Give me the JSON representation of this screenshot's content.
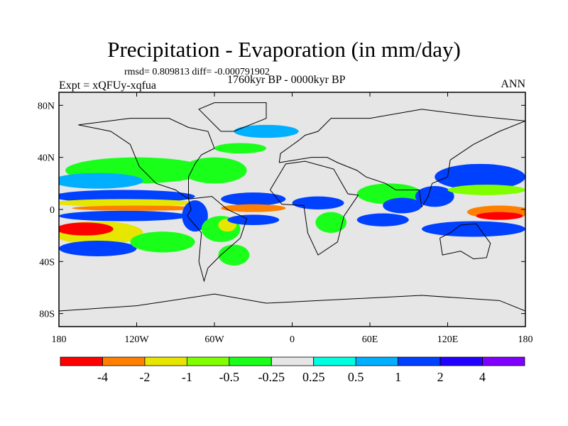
{
  "title": "Precipitation - Evaporation (in mm/day)",
  "stats": "rmsd= 0.809813 diff= -0.000791902",
  "period": "1760kyr BP - 0000kyr BP",
  "experiment": "Expt = xQFUy-xqfua",
  "season": "ANN",
  "chart_data": {
    "type": "heatmap",
    "projection": "cylindrical equidistant",
    "xlim": [
      -180,
      180
    ],
    "ylim": [
      -90,
      90
    ],
    "x_ticks": [
      {
        "v": -180,
        "label": "180"
      },
      {
        "v": -120,
        "label": "120W"
      },
      {
        "v": -60,
        "label": "60W"
      },
      {
        "v": 0,
        "label": "0"
      },
      {
        "v": 60,
        "label": "60E"
      },
      {
        "v": 120,
        "label": "120E"
      },
      {
        "v": 180,
        "label": "180"
      }
    ],
    "y_ticks": [
      {
        "v": 80,
        "label": "80N"
      },
      {
        "v": 40,
        "label": "40N"
      },
      {
        "v": 0,
        "label": "0"
      },
      {
        "v": -40,
        "label": "40S"
      },
      {
        "v": -80,
        "label": "80S"
      }
    ],
    "colorbar": {
      "levels": [
        "-4",
        "-2",
        "-1",
        "-0.5",
        "-0.25",
        "0.25",
        "0.5",
        "1",
        "2",
        "4"
      ],
      "level_values": [
        -4,
        -2,
        -1,
        -0.5,
        -0.25,
        0.25,
        0.5,
        1,
        2,
        4
      ],
      "colors": [
        "#ff0000",
        "#ff8000",
        "#e6e600",
        "#80ff00",
        "#1aff1a",
        "#e6e6e6",
        "#00ffe0",
        "#00b0ff",
        "#0040ff",
        "#2000ff",
        "#8000ff"
      ]
    },
    "regions": [
      {
        "lon": -120,
        "lat": 30,
        "rlon": 55,
        "rlat": 10,
        "value": -0.4
      },
      {
        "lon": -150,
        "lat": 22,
        "rlon": 35,
        "rlat": 6,
        "value": 0.6
      },
      {
        "lon": -60,
        "lat": 30,
        "rlon": 25,
        "rlat": 10,
        "value": -0.4
      },
      {
        "lon": -130,
        "lat": 10,
        "rlon": 55,
        "rlat": 5,
        "value": 1.5
      },
      {
        "lon": -130,
        "lat": 5,
        "rlon": 55,
        "rlat": 3,
        "value": -1.5
      },
      {
        "lon": -120,
        "lat": 1,
        "rlon": 50,
        "rlat": 2,
        "value": -2.5
      },
      {
        "lon": -130,
        "lat": -5,
        "rlon": 50,
        "rlat": 4,
        "value": 1.2
      },
      {
        "lon": -150,
        "lat": -18,
        "rlon": 35,
        "rlat": 9,
        "value": -1.5
      },
      {
        "lon": -160,
        "lat": -15,
        "rlon": 22,
        "rlat": 5,
        "value": -5
      },
      {
        "lon": -150,
        "lat": -30,
        "rlon": 30,
        "rlat": 6,
        "value": 1.5
      },
      {
        "lon": -100,
        "lat": -25,
        "rlon": 25,
        "rlat": 8,
        "value": -0.4
      },
      {
        "lon": -75,
        "lat": -5,
        "rlon": 10,
        "rlat": 12,
        "value": 1.5
      },
      {
        "lon": -55,
        "lat": -15,
        "rlon": 15,
        "rlat": 10,
        "value": -0.4
      },
      {
        "lon": -50,
        "lat": -12,
        "rlon": 7,
        "rlat": 5,
        "value": -1.5
      },
      {
        "lon": -30,
        "lat": 8,
        "rlon": 25,
        "rlat": 5,
        "value": 1.2
      },
      {
        "lon": -30,
        "lat": 1,
        "rlon": 25,
        "rlat": 3,
        "value": -2.5
      },
      {
        "lon": -30,
        "lat": -8,
        "rlon": 20,
        "rlat": 4,
        "value": 1.2
      },
      {
        "lon": -45,
        "lat": -35,
        "rlon": 12,
        "rlat": 8,
        "value": -0.4
      },
      {
        "lon": 20,
        "lat": 5,
        "rlon": 20,
        "rlat": 5,
        "value": 1.2
      },
      {
        "lon": 30,
        "lat": -10,
        "rlon": 12,
        "rlat": 8,
        "value": -0.4
      },
      {
        "lon": 75,
        "lat": 12,
        "rlon": 25,
        "rlat": 8,
        "value": -0.4
      },
      {
        "lon": 85,
        "lat": 3,
        "rlon": 15,
        "rlat": 6,
        "value": 1.5
      },
      {
        "lon": 70,
        "lat": -8,
        "rlon": 20,
        "rlat": 5,
        "value": 1.2
      },
      {
        "lon": 110,
        "lat": 10,
        "rlon": 15,
        "rlat": 8,
        "value": 1.5
      },
      {
        "lon": 145,
        "lat": 25,
        "rlon": 35,
        "rlat": 10,
        "value": 1.2
      },
      {
        "lon": 150,
        "lat": 15,
        "rlon": 30,
        "rlat": 4,
        "value": -0.8
      },
      {
        "lon": 160,
        "lat": -2,
        "rlon": 25,
        "rlat": 5,
        "value": -2.5
      },
      {
        "lon": 160,
        "lat": -5,
        "rlon": 18,
        "rlat": 3,
        "value": -5
      },
      {
        "lon": 140,
        "lat": -15,
        "rlon": 40,
        "rlat": 6,
        "value": 1.5
      },
      {
        "lon": -20,
        "lat": 60,
        "rlon": 25,
        "rlat": 5,
        "value": 0.6
      },
      {
        "lon": -40,
        "lat": 47,
        "rlon": 20,
        "rlat": 4,
        "value": -0.4
      }
    ]
  }
}
